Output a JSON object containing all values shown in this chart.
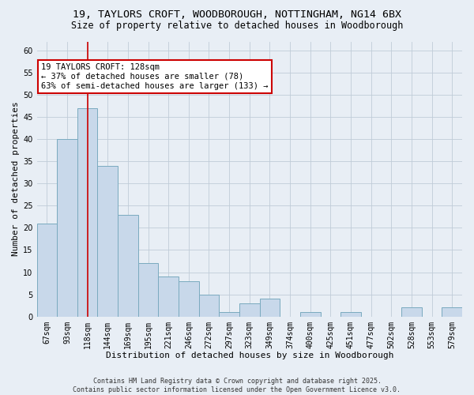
{
  "title_line1": "19, TAYLORS CROFT, WOODBOROUGH, NOTTINGHAM, NG14 6BX",
  "title_line2": "Size of property relative to detached houses in Woodborough",
  "xlabel": "Distribution of detached houses by size in Woodborough",
  "ylabel": "Number of detached properties",
  "categories": [
    "67sqm",
    "93sqm",
    "118sqm",
    "144sqm",
    "169sqm",
    "195sqm",
    "221sqm",
    "246sqm",
    "272sqm",
    "297sqm",
    "323sqm",
    "349sqm",
    "374sqm",
    "400sqm",
    "425sqm",
    "451sqm",
    "477sqm",
    "502sqm",
    "528sqm",
    "553sqm",
    "579sqm"
  ],
  "values": [
    21,
    40,
    47,
    34,
    23,
    12,
    9,
    8,
    5,
    1,
    3,
    4,
    0,
    1,
    0,
    1,
    0,
    0,
    2,
    0,
    2
  ],
  "bar_color": "#c8d8ea",
  "bar_edge_color": "#7aaabf",
  "vline_x": 2.0,
  "vline_color": "#cc0000",
  "annotation_line1": "19 TAYLORS CROFT: 128sqm",
  "annotation_line2": "← 37% of detached houses are smaller (78)",
  "annotation_line3": "63% of semi-detached houses are larger (133) →",
  "annotation_box_color": "#cc0000",
  "annotation_bg": "#ffffff",
  "ylim": [
    0,
    62
  ],
  "yticks": [
    0,
    5,
    10,
    15,
    20,
    25,
    30,
    35,
    40,
    45,
    50,
    55,
    60
  ],
  "grid_color": "#c0ccd8",
  "bg_color": "#e8eef5",
  "footer": "Contains HM Land Registry data © Crown copyright and database right 2025.\nContains public sector information licensed under the Open Government Licence v3.0.",
  "title_fontsize": 9.5,
  "subtitle_fontsize": 8.5,
  "axis_label_fontsize": 8,
  "tick_fontsize": 7,
  "annotation_fontsize": 7.5,
  "footer_fontsize": 6
}
